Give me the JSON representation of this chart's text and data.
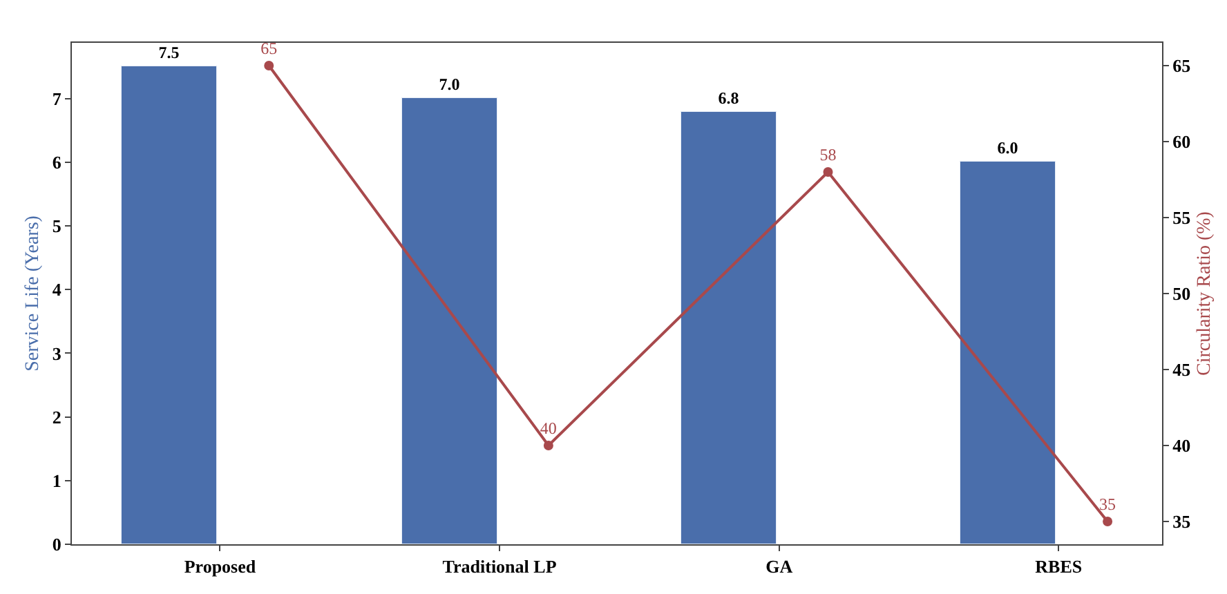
{
  "chart_data": {
    "type": "bar",
    "categories": [
      "Proposed",
      "Traditional LP",
      "GA",
      "RBES"
    ],
    "ylabel": "Service Life (Years)",
    "y2label": "Circularity Ratio (%)",
    "series": [
      {
        "color": "#4a6eab",
        "values": [
          7.5,
          7.0,
          6.8,
          6.0
        ],
        "value_labels": [
          "7.5",
          "7.0",
          "6.8",
          "6.0"
        ]
      },
      {
        "type": "line",
        "axis": "y2",
        "color": "#a8494c",
        "values": [
          65,
          40,
          58,
          35
        ],
        "value_labels": [
          "65",
          "40",
          "58",
          "35"
        ],
        "marker": "circle",
        "line_style": "solid"
      }
    ],
    "ylim": [
      0,
      7.875
    ],
    "yticks": [
      0,
      1,
      2,
      3,
      4,
      5,
      6,
      7
    ],
    "y2lim": [
      33.5,
      66.5
    ],
    "y2ticks": [
      35,
      40,
      45,
      50,
      55,
      60,
      65
    ]
  }
}
